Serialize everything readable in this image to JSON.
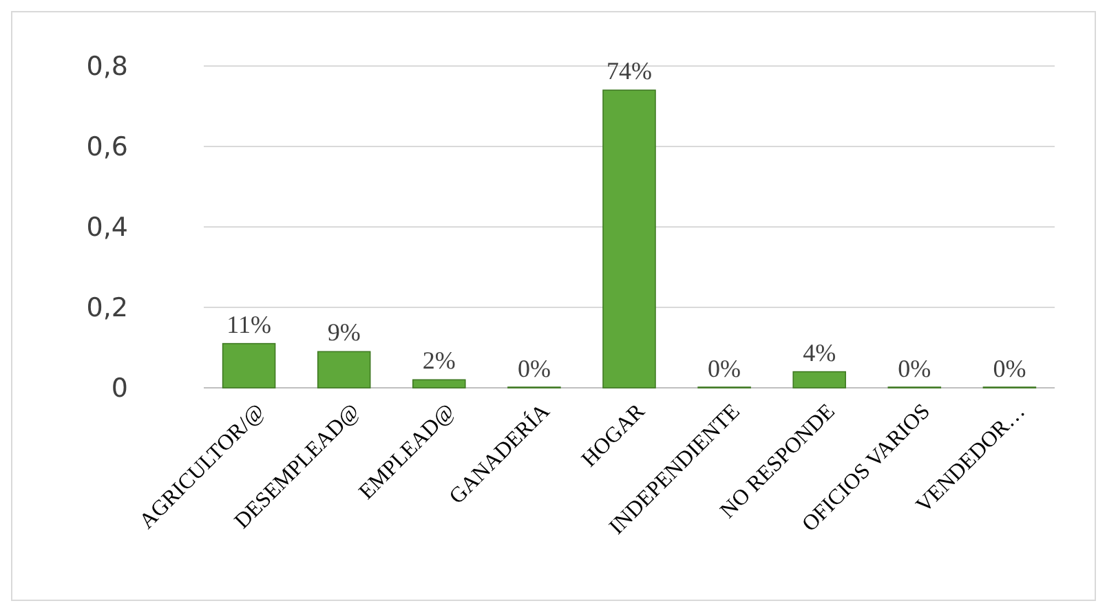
{
  "chart_data": {
    "type": "bar",
    "categories": [
      "AGRICULTOR/@",
      "DESEMPLEAD@",
      "EMPLEAD@",
      "GANADERÍA",
      "HOGAR",
      "INDEPENDIENTE",
      "NO RESPONDE",
      "OFICIOS VARIOS",
      "VENDEDOR…"
    ],
    "values": [
      0.11,
      0.09,
      0.02,
      0,
      0.74,
      0,
      0.04,
      0,
      0
    ],
    "value_labels": [
      "11%",
      "9%",
      "2%",
      "0%",
      "74%",
      "0%",
      "4%",
      "0%",
      "0%"
    ],
    "color": "#5fa83a",
    "ylim": [
      0,
      0.8
    ],
    "yticks": [
      0,
      {
        "value": 0.2,
        "label": "0,2"
      },
      {
        "value": 0.4,
        "label": "0,4"
      },
      {
        "value": 0.6,
        "label": "0,6"
      },
      {
        "value": 0.8,
        "label": "0,8"
      }
    ],
    "grid": "y"
  }
}
